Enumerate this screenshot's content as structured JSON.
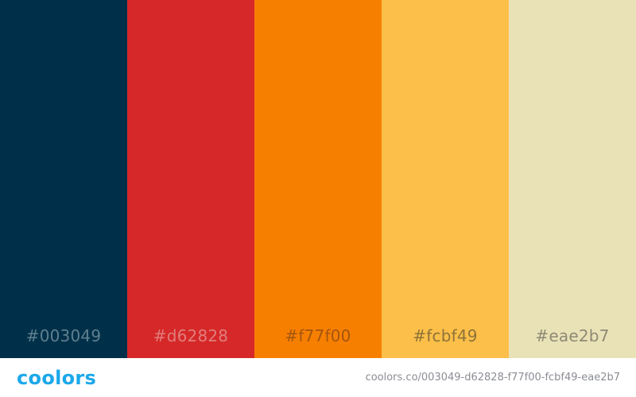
{
  "palette": {
    "swatches": [
      {
        "hex": "#003049",
        "label": "#003049",
        "label_color": "#5f7f90"
      },
      {
        "hex": "#d62828",
        "label": "#d62828",
        "label_color": "#e27d7d"
      },
      {
        "hex": "#f77f00",
        "label": "#f77f00",
        "label_color": "#a3560f"
      },
      {
        "hex": "#fcbf49",
        "label": "#fcbf49",
        "label_color": "#8d7338"
      },
      {
        "hex": "#eae2b7",
        "label": "#eae2b7",
        "label_color": "#8d8a74"
      }
    ]
  },
  "footer": {
    "logo_text": "coolors",
    "logo_color": "#1ba8ea",
    "url": "coolors.co/003049-d62828-f77f00-fcbf49-eae2b7",
    "url_color": "#8a8d93"
  }
}
